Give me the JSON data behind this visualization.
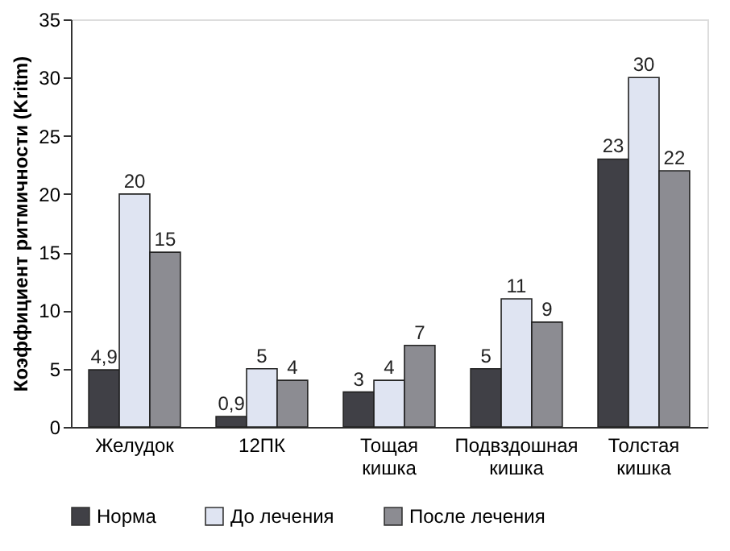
{
  "chart_data": {
    "type": "bar",
    "ylabel": "Коэффициент ритмичности (Kritm)",
    "categories": [
      "Желудок",
      "12ПК",
      "Тощая кишка",
      "Подвздошная кишка",
      "Толстая кишка"
    ],
    "series": [
      {
        "name": "Норма",
        "color": "#404046",
        "values": [
          4.9,
          0.9,
          3,
          5,
          23
        ],
        "value_labels": [
          "4,9",
          "0,9",
          "3",
          "5",
          "23"
        ]
      },
      {
        "name": "До лечения",
        "color": "#dfe4f2",
        "values": [
          20,
          5,
          4,
          11,
          30
        ],
        "value_labels": [
          "20",
          "5",
          "4",
          "11",
          "30"
        ]
      },
      {
        "name": "После лечения",
        "color": "#8c8c92",
        "values": [
          15,
          4,
          7,
          9,
          22
        ],
        "value_labels": [
          "15",
          "4",
          "7",
          "9",
          "22"
        ]
      }
    ],
    "ylim": [
      0,
      35
    ],
    "yticks": [
      0,
      5,
      10,
      15,
      20,
      25,
      30,
      35
    ],
    "grid": false,
    "legend": "bottom"
  }
}
